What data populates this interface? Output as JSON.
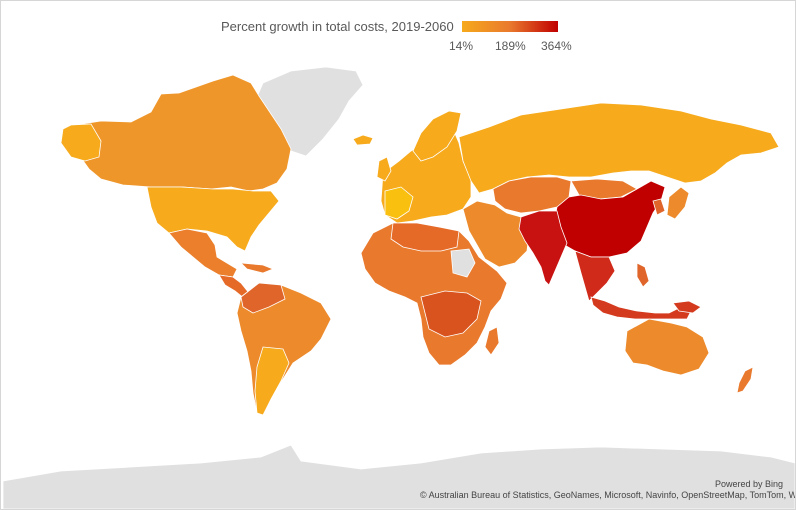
{
  "legend": {
    "title": "Percent growth in total costs, 2019-2060",
    "min_label": "14%",
    "mid_label": "189%",
    "max_label": "364%",
    "min_value": 14,
    "mid_value": 189,
    "max_value": 364
  },
  "colors": {
    "low": "#f6aa1c",
    "mid": "#e9792d",
    "high": "#c00000",
    "no_data": "#e0e0e0",
    "border": "#ffffff"
  },
  "attribution": {
    "powered_by": "Powered by Bing",
    "credits": "© Australian Bureau of Statistics, GeoNames, Microsoft, Navinfo, OpenStreetMap, TomTom, Wikipedia"
  },
  "regions": [
    {
      "name": "Canada",
      "growth_level": "low-mid"
    },
    {
      "name": "United States",
      "growth_level": "low"
    },
    {
      "name": "Mexico",
      "growth_level": "mid"
    },
    {
      "name": "South America",
      "growth_level": "mid"
    },
    {
      "name": "Europe",
      "growth_level": "low"
    },
    {
      "name": "Russia",
      "growth_level": "low"
    },
    {
      "name": "Africa",
      "growth_level": "mid-high"
    },
    {
      "name": "Middle East",
      "growth_level": "mid"
    },
    {
      "name": "India",
      "growth_level": "high"
    },
    {
      "name": "China",
      "growth_level": "high"
    },
    {
      "name": "Southeast Asia",
      "growth_level": "high"
    },
    {
      "name": "Japan",
      "growth_level": "mid"
    },
    {
      "name": "Australia",
      "growth_level": "mid"
    },
    {
      "name": "New Zealand",
      "growth_level": "mid"
    },
    {
      "name": "Greenland",
      "growth_level": "no data"
    },
    {
      "name": "Antarctica",
      "growth_level": "no data"
    }
  ]
}
